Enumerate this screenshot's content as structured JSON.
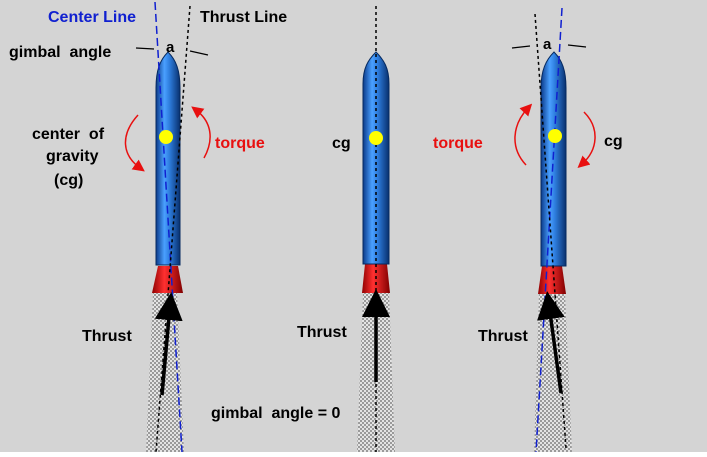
{
  "colors": {
    "background": "#d4d4d4",
    "rocket_body": "#2f7fe0",
    "nozzle": "#e81010",
    "cg_dot": "#ffff00",
    "center_line": "#1020d0",
    "torque": "#e81010",
    "text": "#000000"
  },
  "labels": {
    "center_line": "Center Line",
    "thrust_line": "Thrust Line",
    "gimbal_angle": "gimbal  angle",
    "angle_symbol_left": "a",
    "angle_symbol_right": "a",
    "cg_long_1": "center  of",
    "cg_long_2": "gravity",
    "cg_long_3": "(cg)",
    "torque_left": "torque",
    "cg_middle": "cg",
    "torque_middle": "torque",
    "cg_right": "cg",
    "thrust_left": "Thrust",
    "thrust_middle": "Thrust",
    "thrust_right": "Thrust",
    "gimbal_zero": "gimbal  angle = 0"
  }
}
